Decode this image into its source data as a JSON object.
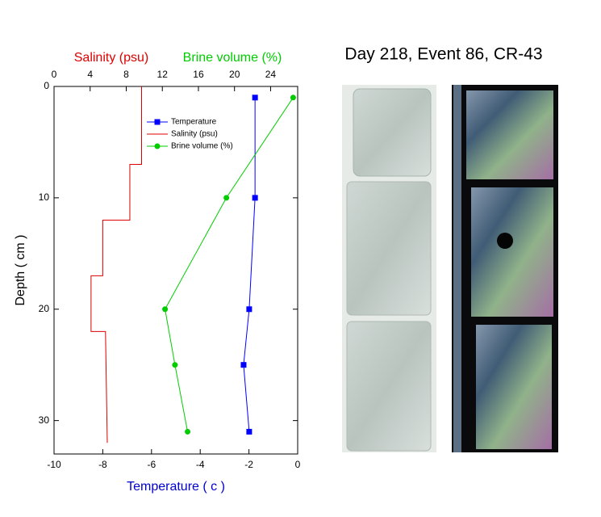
{
  "title": "Day 218, Event 86, CR-43",
  "chart_data": {
    "type": "profile",
    "x_label": "Temperature ( c )",
    "y_label": "Depth ( cm )",
    "x2_labels": [
      {
        "text": "Salinity (psu)",
        "color": "#dd0000"
      },
      {
        "text": "Brine volume (%)",
        "color": "#00cc00"
      }
    ],
    "xlim": [
      -10,
      0
    ],
    "xticks": [
      -10,
      -8,
      -6,
      -4,
      -2,
      0
    ],
    "x2lim": [
      0,
      27
    ],
    "x2ticks": [
      0,
      4,
      8,
      12,
      16,
      20,
      24
    ],
    "ylim": [
      0,
      33
    ],
    "yticks": [
      0,
      10,
      20,
      30
    ],
    "y_inverted": true,
    "series": [
      {
        "name": "Temperature",
        "color": "#0000ff",
        "axis": "x",
        "marker": "square",
        "depth": [
          1,
          10,
          20,
          25,
          31
        ],
        "values": [
          -1.75,
          -1.75,
          -1.99,
          -2.22,
          -1.99
        ]
      },
      {
        "name": "Salinity (psu)",
        "color": "#dd0000",
        "axis": "x2",
        "marker": "none",
        "depth": [
          0,
          7,
          7,
          12,
          12,
          17,
          17,
          22,
          22,
          32
        ],
        "values": [
          9.7,
          9.7,
          8.4,
          8.4,
          5.4,
          5.4,
          4.1,
          4.1,
          5.7,
          5.9
        ]
      },
      {
        "name": "Brine volume (%)",
        "color": "#00cc00",
        "axis": "x2",
        "marker": "circle",
        "depth": [
          1,
          10,
          20,
          25,
          31
        ],
        "values": [
          26.5,
          19.1,
          12.3,
          13.4,
          14.8
        ]
      }
    ]
  }
}
